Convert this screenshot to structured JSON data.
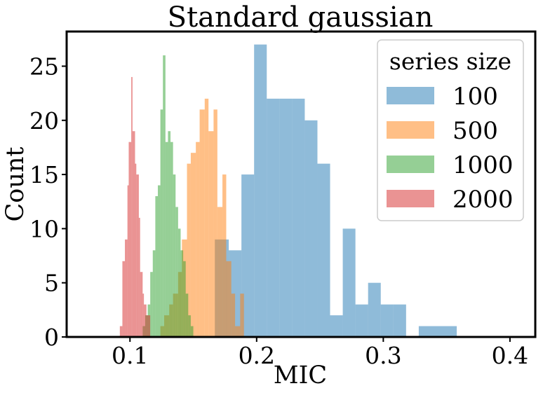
{
  "chart_data": {
    "type": "bar",
    "subtype": "overlapping-histogram",
    "title": "Standard gaussian",
    "xlabel": "MIC",
    "ylabel": "Count",
    "xlim": [
      0.05,
      0.42
    ],
    "ylim": [
      0,
      28.2
    ],
    "xticks": [
      0.1,
      0.2,
      0.3,
      0.4
    ],
    "xtick_labels": [
      "0.1",
      "0.2",
      "0.3",
      "0.4"
    ],
    "yticks": [
      0,
      5,
      10,
      15,
      20,
      25
    ],
    "ytick_labels": [
      "0",
      "5",
      "10",
      "15",
      "20",
      "25"
    ],
    "grid": false,
    "legend": {
      "title": "series size",
      "position": "top-right"
    },
    "alpha": 0.5,
    "series": [
      {
        "name": "100",
        "color": "#1f77b4",
        "bins": [
          [
            0.167,
            0.178,
            9
          ],
          [
            0.178,
            0.188,
            8
          ],
          [
            0.188,
            0.198,
            15
          ],
          [
            0.198,
            0.208,
            27
          ],
          [
            0.208,
            0.218,
            22
          ],
          [
            0.218,
            0.228,
            22
          ],
          [
            0.228,
            0.238,
            22
          ],
          [
            0.238,
            0.248,
            20
          ],
          [
            0.248,
            0.258,
            16
          ],
          [
            0.258,
            0.268,
            2
          ],
          [
            0.268,
            0.278,
            10
          ],
          [
            0.278,
            0.288,
            3
          ],
          [
            0.288,
            0.298,
            5
          ],
          [
            0.298,
            0.308,
            3
          ],
          [
            0.308,
            0.318,
            3
          ],
          [
            0.318,
            0.328,
            0
          ],
          [
            0.328,
            0.338,
            1
          ],
          [
            0.338,
            0.348,
            1
          ],
          [
            0.348,
            0.358,
            1
          ]
        ]
      },
      {
        "name": "500",
        "color": "#ff7f0e",
        "bins": [
          [
            0.124,
            0.127,
            1
          ],
          [
            0.127,
            0.131,
            2
          ],
          [
            0.131,
            0.134,
            3
          ],
          [
            0.134,
            0.138,
            4
          ],
          [
            0.138,
            0.141,
            6
          ],
          [
            0.141,
            0.145,
            9
          ],
          [
            0.145,
            0.148,
            16
          ],
          [
            0.148,
            0.152,
            17
          ],
          [
            0.152,
            0.155,
            18
          ],
          [
            0.155,
            0.159,
            21
          ],
          [
            0.159,
            0.162,
            22
          ],
          [
            0.162,
            0.166,
            19
          ],
          [
            0.166,
            0.169,
            21
          ],
          [
            0.169,
            0.173,
            12
          ],
          [
            0.173,
            0.176,
            15
          ],
          [
            0.176,
            0.18,
            7
          ],
          [
            0.18,
            0.183,
            4
          ],
          [
            0.183,
            0.187,
            1
          ],
          [
            0.187,
            0.19,
            4
          ]
        ]
      },
      {
        "name": "1000",
        "color": "#2ca02c",
        "bins": [
          [
            0.11,
            0.112,
            1
          ],
          [
            0.112,
            0.114,
            2
          ],
          [
            0.114,
            0.116,
            3
          ],
          [
            0.116,
            0.118,
            6
          ],
          [
            0.118,
            0.12,
            8
          ],
          [
            0.12,
            0.122,
            13
          ],
          [
            0.122,
            0.124,
            14
          ],
          [
            0.124,
            0.126,
            21
          ],
          [
            0.126,
            0.128,
            26
          ],
          [
            0.128,
            0.13,
            18
          ],
          [
            0.13,
            0.132,
            19
          ],
          [
            0.132,
            0.134,
            18
          ],
          [
            0.134,
            0.136,
            15
          ],
          [
            0.136,
            0.138,
            12
          ],
          [
            0.138,
            0.14,
            10
          ],
          [
            0.14,
            0.142,
            8
          ],
          [
            0.142,
            0.144,
            7
          ],
          [
            0.144,
            0.146,
            4
          ],
          [
            0.146,
            0.148,
            2
          ],
          [
            0.148,
            0.15,
            1
          ]
        ]
      },
      {
        "name": "2000",
        "color": "#d62728",
        "bins": [
          [
            0.092,
            0.094,
            1
          ],
          [
            0.094,
            0.096,
            7
          ],
          [
            0.096,
            0.098,
            9
          ],
          [
            0.098,
            0.099,
            14
          ],
          [
            0.099,
            0.101,
            18
          ],
          [
            0.101,
            0.102,
            24
          ],
          [
            0.102,
            0.104,
            19
          ],
          [
            0.104,
            0.105,
            16
          ],
          [
            0.105,
            0.107,
            15
          ],
          [
            0.107,
            0.108,
            11
          ],
          [
            0.108,
            0.11,
            6
          ],
          [
            0.11,
            0.111,
            4
          ],
          [
            0.111,
            0.113,
            3
          ],
          [
            0.113,
            0.114,
            2
          ],
          [
            0.114,
            0.116,
            2
          ]
        ]
      }
    ]
  }
}
